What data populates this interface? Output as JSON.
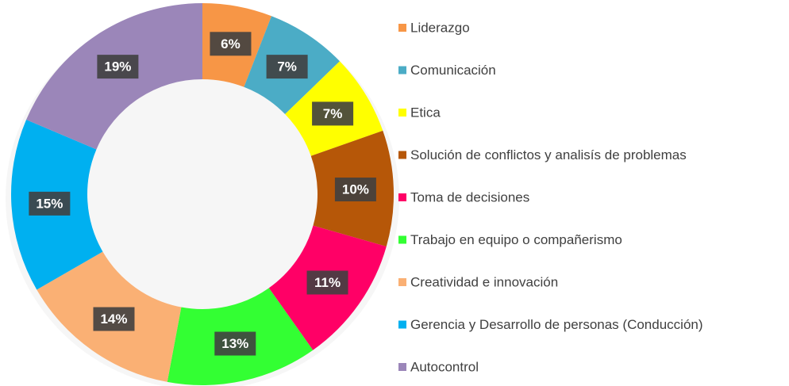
{
  "chart_data": {
    "type": "donut",
    "categories": [
      "Liderazgo",
      "Comunicación",
      "Etica",
      "Solución de conflictos y analisís de problemas",
      "Toma de decisiones",
      "Trabajo en equipo o compañerismo",
      "Creatividad e innovación",
      "Gerencia y Desarrollo de personas (Conducción)",
      "Autocontrol"
    ],
    "values": [
      6,
      7,
      7,
      10,
      11,
      13,
      14,
      15,
      19
    ],
    "value_labels": [
      "6%",
      "7%",
      "7%",
      "10%",
      "11%",
      "13%",
      "14%",
      "15%",
      "19%"
    ],
    "colors": [
      "#f79646",
      "#4bacc6",
      "#ffff00",
      "#b65708",
      "#ff0066",
      "#33ff33",
      "#fab074",
      "#00b0f0",
      "#9b86b9"
    ],
    "legend": "right"
  }
}
